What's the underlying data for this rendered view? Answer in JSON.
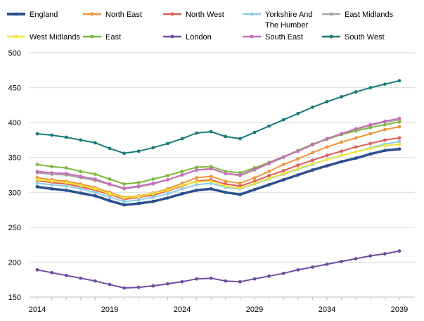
{
  "chart_data": {
    "type": "line",
    "title": "",
    "xlabel": "",
    "ylabel": "",
    "x": [
      2014,
      2015,
      2016,
      2017,
      2018,
      2019,
      2020,
      2021,
      2022,
      2023,
      2024,
      2025,
      2026,
      2027,
      2028,
      2029,
      2030,
      2031,
      2032,
      2033,
      2034,
      2035,
      2036,
      2037,
      2038,
      2039
    ],
    "xticks": [
      "2014",
      "2019",
      "2024",
      "2029",
      "2034",
      "2039"
    ],
    "ylim": [
      150,
      500
    ],
    "yticks": [
      "150",
      "200",
      "250",
      "300",
      "350",
      "400",
      "450",
      "500"
    ],
    "grid": true,
    "legend_position": "top",
    "series": [
      {
        "name": "England",
        "color": "#2c4f8f",
        "width": 3.5,
        "values": [
          308,
          305,
          303,
          299,
          295,
          288,
          282,
          284,
          287,
          292,
          298,
          303,
          305,
          300,
          297,
          304,
          311,
          318,
          325,
          332,
          338,
          344,
          349,
          355,
          360,
          362
        ]
      },
      {
        "name": "North East",
        "color": "#f0953a",
        "width": 2,
        "values": [
          321,
          318,
          316,
          312,
          307,
          300,
          293,
          295,
          299,
          305,
          313,
          321,
          323,
          316,
          313,
          321,
          330,
          340,
          348,
          357,
          365,
          372,
          378,
          384,
          390,
          394
        ]
      },
      {
        "name": "North West",
        "color": "#de5a5a",
        "width": 2,
        "values": [
          317,
          314,
          312,
          308,
          303,
          297,
          290,
          293,
          296,
          302,
          309,
          316,
          318,
          312,
          309,
          316,
          324,
          331,
          339,
          346,
          353,
          359,
          365,
          370,
          375,
          378
        ]
      },
      {
        "name": "Yorkshire And The Humber",
        "color": "#8ccde8",
        "width": 2,
        "values": [
          313,
          311,
          309,
          305,
          300,
          293,
          287,
          289,
          293,
          298,
          305,
          311,
          313,
          307,
          305,
          312,
          319,
          326,
          333,
          340,
          347,
          353,
          358,
          364,
          369,
          373
        ]
      },
      {
        "name": "East Midlands",
        "color": "#a6a6a6",
        "width": 2,
        "values": [
          328,
          326,
          325,
          321,
          317,
          311,
          305,
          308,
          312,
          318,
          325,
          332,
          334,
          327,
          324,
          332,
          341,
          350,
          360,
          369,
          377,
          384,
          390,
          396,
          401,
          404
        ]
      },
      {
        "name": "West Midlands",
        "color": "#f3e43c",
        "width": 2,
        "values": [
          318,
          316,
          314,
          310,
          305,
          298,
          292,
          294,
          298,
          303,
          310,
          315,
          316,
          309,
          306,
          313,
          320,
          327,
          334,
          341,
          347,
          353,
          358,
          363,
          367,
          369
        ]
      },
      {
        "name": "East",
        "color": "#7cb83d",
        "width": 2,
        "values": [
          340,
          337,
          335,
          330,
          326,
          319,
          312,
          314,
          319,
          324,
          330,
          336,
          337,
          330,
          328,
          335,
          343,
          351,
          360,
          369,
          376,
          383,
          388,
          393,
          397,
          401
        ]
      },
      {
        "name": "London",
        "color": "#6d4c9f",
        "width": 2,
        "values": [
          189,
          185,
          181,
          177,
          173,
          168,
          163,
          164,
          166,
          169,
          172,
          176,
          177,
          173,
          172,
          176,
          180,
          184,
          189,
          193,
          197,
          201,
          205,
          209,
          212,
          216
        ]
      },
      {
        "name": "South East",
        "color": "#c86cb8",
        "width": 2,
        "values": [
          330,
          328,
          327,
          323,
          319,
          312,
          306,
          309,
          313,
          318,
          325,
          332,
          334,
          327,
          325,
          333,
          342,
          351,
          359,
          368,
          377,
          384,
          391,
          397,
          402,
          406
        ]
      },
      {
        "name": "South West",
        "color": "#167a78",
        "width": 2,
        "values": [
          384,
          382,
          379,
          375,
          371,
          363,
          356,
          359,
          364,
          370,
          377,
          385,
          387,
          380,
          377,
          386,
          395,
          404,
          413,
          422,
          430,
          437,
          444,
          450,
          455,
          460
        ]
      }
    ]
  }
}
